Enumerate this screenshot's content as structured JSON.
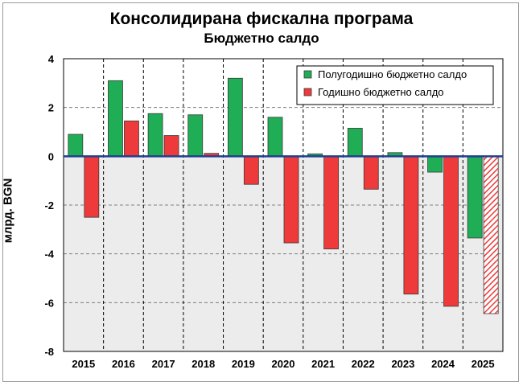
{
  "chart_data": {
    "type": "bar",
    "title": "Консолидирана фискална програма",
    "subtitle": "Бюджетно салдо",
    "xlabel": "",
    "ylabel": "млрд. BGN",
    "categories": [
      "2015",
      "2016",
      "2017",
      "2018",
      "2019",
      "2020",
      "2021",
      "2022",
      "2023",
      "2024",
      "2025"
    ],
    "ylim": [
      -8,
      4
    ],
    "yticks": [
      4,
      2,
      0,
      -2,
      -4,
      -6,
      -8
    ],
    "grid": true,
    "legend_position": "top-right",
    "series": [
      {
        "name": "Полугодишно бюджетно салдо",
        "color": "#1fad55",
        "values": [
          0.9,
          3.1,
          1.75,
          1.7,
          3.2,
          1.6,
          0.1,
          1.15,
          0.15,
          -0.65,
          -3.35
        ]
      },
      {
        "name": "Годишно бюджетно салдо",
        "color": "#ee3a3a",
        "values": [
          -2.5,
          1.45,
          0.85,
          0.12,
          -1.15,
          -3.55,
          -3.8,
          -1.35,
          -5.65,
          -6.15,
          -6.45
        ],
        "hatched_last": true
      }
    ]
  }
}
